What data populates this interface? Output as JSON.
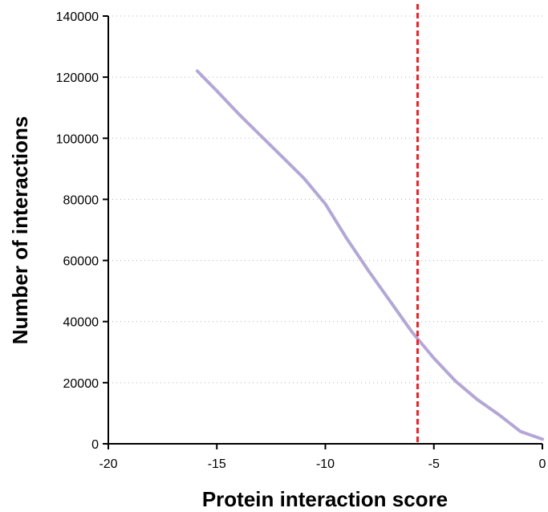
{
  "chart_data": {
    "type": "line",
    "title": "",
    "xlabel": "Protein interaction score",
    "ylabel": "Number of interactions",
    "xlim": [
      -20,
      0
    ],
    "ylim": [
      0,
      140000
    ],
    "xticks": [
      -20,
      -15,
      -10,
      -5,
      0
    ],
    "yticks": [
      0,
      20000,
      40000,
      60000,
      80000,
      100000,
      120000,
      140000
    ],
    "grid": "horizontal dotted",
    "legend": "none",
    "series": [
      {
        "color": "#b4a7d6",
        "x": [
          -15.9,
          -15.0,
          -14.0,
          -13.0,
          -12.0,
          -11.0,
          -10.0,
          -9.0,
          -8.0,
          -7.0,
          -6.0,
          -5.0,
          -4.0,
          -3.0,
          -2.0,
          -1.0,
          0.0
        ],
        "y": [
          122000,
          115500,
          108000,
          101000,
          94000,
          87000,
          78500,
          67000,
          56500,
          46500,
          36500,
          28000,
          20500,
          14500,
          9500,
          4000,
          1500
        ]
      }
    ],
    "reference_lines": [
      {
        "x": -5.75,
        "color": "#e8262a",
        "style": "dashed"
      }
    ]
  }
}
